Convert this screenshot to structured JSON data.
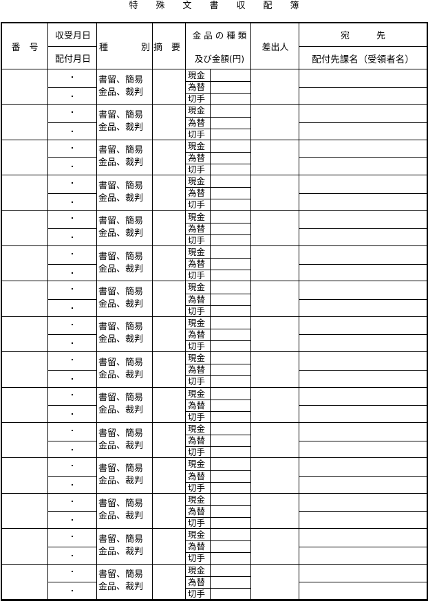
{
  "title": "特殊文書収配簿",
  "header": {
    "number": "番　号",
    "received_date": "収受月日",
    "delivered_date": "配付月日",
    "type_left": "種",
    "type_right": "別",
    "summary": "摘　要",
    "money_type": "金 品 の 種 類",
    "money_amount": "及び金額(円)",
    "sender": "差出人",
    "addressee": "宛　　　先",
    "delivery_dept": "配付先課名（受領者名）"
  },
  "row_template": {
    "date_sep": "・",
    "type_line1": "書留、簡易",
    "type_line2": "金品、裁判",
    "money_kinds": [
      "現金",
      "為替",
      "切手"
    ]
  },
  "row_count": 15
}
